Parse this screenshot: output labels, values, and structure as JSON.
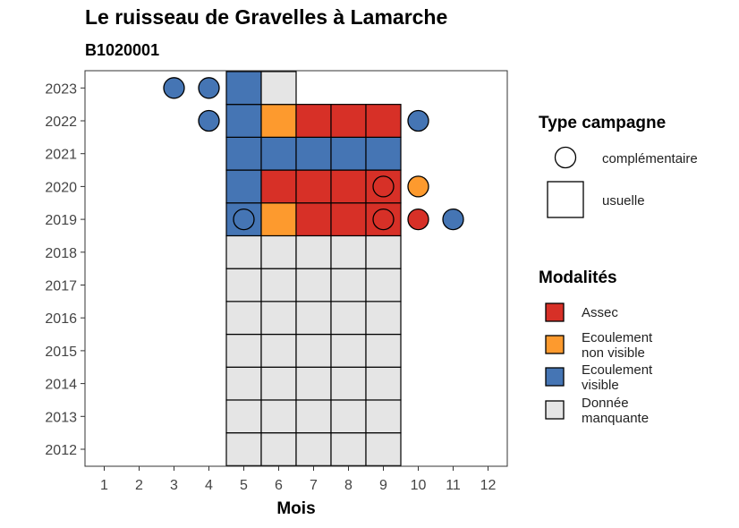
{
  "title": "Le ruisseau de Gravelles à Lamarche",
  "subtitle": "B1020001",
  "chart_data": {
    "type": "heatmap",
    "xlabel": "Mois",
    "ylabel": "",
    "x_categories": [
      "1",
      "2",
      "3",
      "4",
      "5",
      "6",
      "7",
      "8",
      "9",
      "10",
      "11",
      "12"
    ],
    "y_categories": [
      "2012",
      "2013",
      "2014",
      "2015",
      "2016",
      "2017",
      "2018",
      "2019",
      "2020",
      "2021",
      "2022",
      "2023"
    ],
    "colors": {
      "Assec": "#d73027",
      "Ecoulement non visible": "#fd9a2e",
      "Ecoulement visible": "#4575b4",
      "Donnée manquante": "#e5e5e5"
    },
    "legend_type": {
      "title": "Type campagne",
      "entries": [
        {
          "shape": "circle",
          "label": "complémentaire"
        },
        {
          "shape": "square",
          "label": "usuelle"
        }
      ]
    },
    "legend_modalites": {
      "title": "Modalités",
      "entries": [
        {
          "key": "Assec",
          "label_lines": [
            "Assec"
          ]
        },
        {
          "key": "Ecoulement non visible",
          "label_lines": [
            "Ecoulement",
            "non visible"
          ]
        },
        {
          "key": "Ecoulement visible",
          "label_lines": [
            "Ecoulement",
            "visible"
          ]
        },
        {
          "key": "Donnée manquante",
          "label_lines": [
            "Donnée",
            "manquante"
          ]
        }
      ]
    },
    "usuelle": [
      {
        "year": 2012,
        "month": 5,
        "modalite": "Donnée manquante"
      },
      {
        "year": 2012,
        "month": 6,
        "modalite": "Donnée manquante"
      },
      {
        "year": 2012,
        "month": 7,
        "modalite": "Donnée manquante"
      },
      {
        "year": 2012,
        "month": 8,
        "modalite": "Donnée manquante"
      },
      {
        "year": 2012,
        "month": 9,
        "modalite": "Donnée manquante"
      },
      {
        "year": 2013,
        "month": 5,
        "modalite": "Donnée manquante"
      },
      {
        "year": 2013,
        "month": 6,
        "modalite": "Donnée manquante"
      },
      {
        "year": 2013,
        "month": 7,
        "modalite": "Donnée manquante"
      },
      {
        "year": 2013,
        "month": 8,
        "modalite": "Donnée manquante"
      },
      {
        "year": 2013,
        "month": 9,
        "modalite": "Donnée manquante"
      },
      {
        "year": 2014,
        "month": 5,
        "modalite": "Donnée manquante"
      },
      {
        "year": 2014,
        "month": 6,
        "modalite": "Donnée manquante"
      },
      {
        "year": 2014,
        "month": 7,
        "modalite": "Donnée manquante"
      },
      {
        "year": 2014,
        "month": 8,
        "modalite": "Donnée manquante"
      },
      {
        "year": 2014,
        "month": 9,
        "modalite": "Donnée manquante"
      },
      {
        "year": 2015,
        "month": 5,
        "modalite": "Donnée manquante"
      },
      {
        "year": 2015,
        "month": 6,
        "modalite": "Donnée manquante"
      },
      {
        "year": 2015,
        "month": 7,
        "modalite": "Donnée manquante"
      },
      {
        "year": 2015,
        "month": 8,
        "modalite": "Donnée manquante"
      },
      {
        "year": 2015,
        "month": 9,
        "modalite": "Donnée manquante"
      },
      {
        "year": 2016,
        "month": 5,
        "modalite": "Donnée manquante"
      },
      {
        "year": 2016,
        "month": 6,
        "modalite": "Donnée manquante"
      },
      {
        "year": 2016,
        "month": 7,
        "modalite": "Donnée manquante"
      },
      {
        "year": 2016,
        "month": 8,
        "modalite": "Donnée manquante"
      },
      {
        "year": 2016,
        "month": 9,
        "modalite": "Donnée manquante"
      },
      {
        "year": 2017,
        "month": 5,
        "modalite": "Donnée manquante"
      },
      {
        "year": 2017,
        "month": 6,
        "modalite": "Donnée manquante"
      },
      {
        "year": 2017,
        "month": 7,
        "modalite": "Donnée manquante"
      },
      {
        "year": 2017,
        "month": 8,
        "modalite": "Donnée manquante"
      },
      {
        "year": 2017,
        "month": 9,
        "modalite": "Donnée manquante"
      },
      {
        "year": 2018,
        "month": 5,
        "modalite": "Donnée manquante"
      },
      {
        "year": 2018,
        "month": 6,
        "modalite": "Donnée manquante"
      },
      {
        "year": 2018,
        "month": 7,
        "modalite": "Donnée manquante"
      },
      {
        "year": 2018,
        "month": 8,
        "modalite": "Donnée manquante"
      },
      {
        "year": 2018,
        "month": 9,
        "modalite": "Donnée manquante"
      },
      {
        "year": 2019,
        "month": 5,
        "modalite": "Ecoulement visible"
      },
      {
        "year": 2019,
        "month": 6,
        "modalite": "Ecoulement non visible"
      },
      {
        "year": 2019,
        "month": 7,
        "modalite": "Assec"
      },
      {
        "year": 2019,
        "month": 8,
        "modalite": "Assec"
      },
      {
        "year": 2019,
        "month": 9,
        "modalite": "Assec"
      },
      {
        "year": 2020,
        "month": 5,
        "modalite": "Ecoulement visible"
      },
      {
        "year": 2020,
        "month": 6,
        "modalite": "Assec"
      },
      {
        "year": 2020,
        "month": 7,
        "modalite": "Assec"
      },
      {
        "year": 2020,
        "month": 8,
        "modalite": "Assec"
      },
      {
        "year": 2020,
        "month": 9,
        "modalite": "Assec"
      },
      {
        "year": 2021,
        "month": 5,
        "modalite": "Ecoulement visible"
      },
      {
        "year": 2021,
        "month": 6,
        "modalite": "Ecoulement visible"
      },
      {
        "year": 2021,
        "month": 7,
        "modalite": "Ecoulement visible"
      },
      {
        "year": 2021,
        "month": 8,
        "modalite": "Ecoulement visible"
      },
      {
        "year": 2021,
        "month": 9,
        "modalite": "Ecoulement visible"
      },
      {
        "year": 2022,
        "month": 5,
        "modalite": "Ecoulement visible"
      },
      {
        "year": 2022,
        "month": 6,
        "modalite": "Ecoulement non visible"
      },
      {
        "year": 2022,
        "month": 7,
        "modalite": "Assec"
      },
      {
        "year": 2022,
        "month": 8,
        "modalite": "Assec"
      },
      {
        "year": 2022,
        "month": 9,
        "modalite": "Assec"
      },
      {
        "year": 2023,
        "month": 5,
        "modalite": "Ecoulement visible"
      },
      {
        "year": 2023,
        "month": 6,
        "modalite": "Donnée manquante"
      }
    ],
    "complementaire": [
      {
        "year": 2023,
        "month": 3,
        "modalite": "Ecoulement visible"
      },
      {
        "year": 2023,
        "month": 4,
        "modalite": "Ecoulement visible"
      },
      {
        "year": 2022,
        "month": 4,
        "modalite": "Ecoulement visible"
      },
      {
        "year": 2022,
        "month": 10,
        "modalite": "Ecoulement visible"
      },
      {
        "year": 2020,
        "month": 9,
        "modalite": "Assec"
      },
      {
        "year": 2020,
        "month": 10,
        "modalite": "Ecoulement non visible"
      },
      {
        "year": 2019,
        "month": 5,
        "modalite": "Ecoulement visible"
      },
      {
        "year": 2019,
        "month": 9,
        "modalite": "Assec"
      },
      {
        "year": 2019,
        "month": 10,
        "modalite": "Assec"
      },
      {
        "year": 2019,
        "month": 11,
        "modalite": "Ecoulement visible"
      }
    ]
  }
}
